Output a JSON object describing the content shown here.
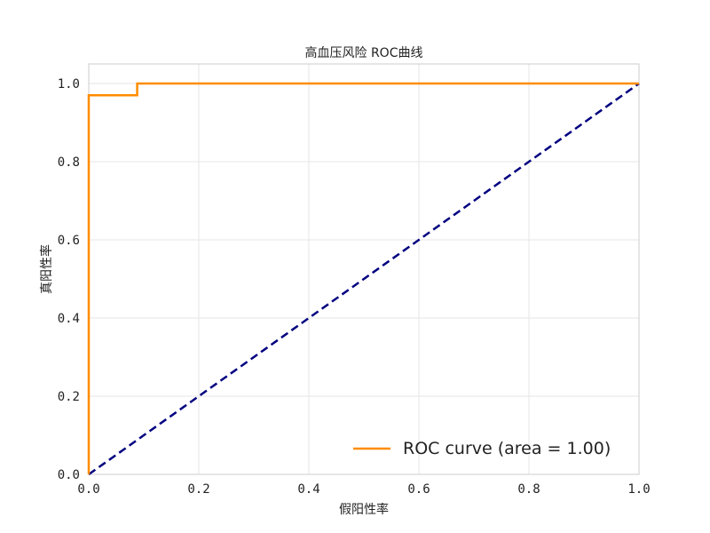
{
  "chart_data": {
    "type": "line",
    "title": "高血压风险 ROC曲线",
    "xlabel": "假阳性率",
    "ylabel": "真阳性率",
    "xlim": [
      0.0,
      1.0
    ],
    "ylim": [
      0.0,
      1.05
    ],
    "x_ticks": [
      "0.0",
      "0.2",
      "0.4",
      "0.6",
      "0.8",
      "1.0"
    ],
    "y_ticks": [
      "0.0",
      "0.2",
      "0.4",
      "0.6",
      "0.8",
      "1.0"
    ],
    "x_tick_values": [
      0.0,
      0.2,
      0.4,
      0.6,
      0.8,
      1.0
    ],
    "y_tick_values": [
      0.0,
      0.2,
      0.4,
      0.6,
      0.8,
      1.0
    ],
    "grid": true,
    "legend_position": "lower-right",
    "series": [
      {
        "name": "ROC curve (area = 1.00)",
        "color": "#ff8c00",
        "style": "solid",
        "x": [
          0.0,
          0.0,
          0.088,
          0.088,
          1.0
        ],
        "y": [
          0.0,
          0.97,
          0.97,
          1.0,
          1.0
        ]
      },
      {
        "color": "#000080",
        "style": "dashed",
        "x": [
          0.0,
          1.0
        ],
        "y": [
          0.0,
          1.0
        ]
      }
    ]
  }
}
